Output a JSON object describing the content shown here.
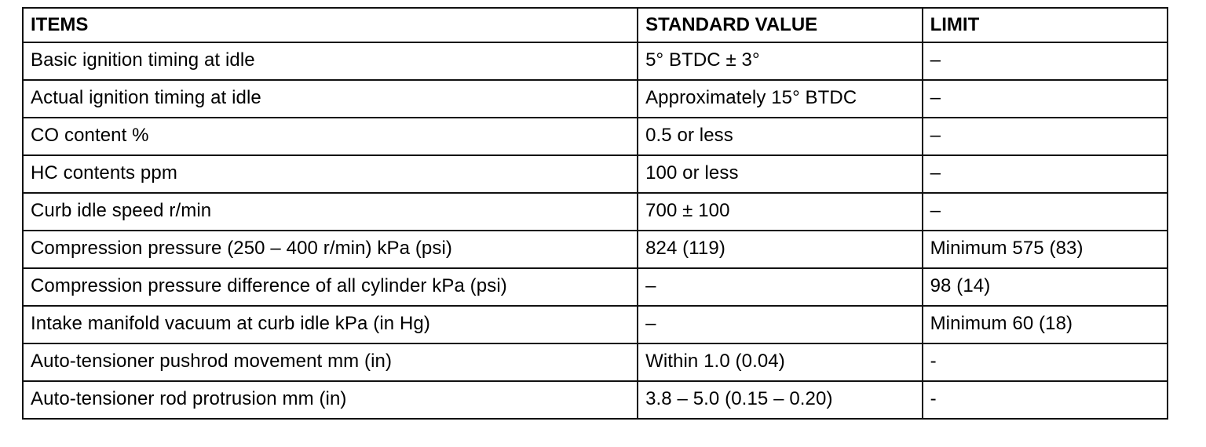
{
  "table": {
    "headers": [
      "ITEMS",
      "STANDARD VALUE",
      "LIMIT"
    ],
    "rows": [
      [
        "Basic ignition timing at idle",
        "5° BTDC ± 3°",
        "–"
      ],
      [
        "Actual ignition timing at idle",
        "Approximately 15° BTDC",
        "–"
      ],
      [
        "CO content %",
        "0.5 or less",
        "–"
      ],
      [
        "HC contents ppm",
        "100 or less",
        "–"
      ],
      [
        "Curb idle speed r/min",
        "700 ± 100",
        "–"
      ],
      [
        "Compression pressure (250 – 400 r/min) kPa (psi)",
        "824 (119)",
        "Minimum 575 (83)"
      ],
      [
        "Compression pressure difference of all cylinder kPa (psi)",
        "–",
        "98 (14)"
      ],
      [
        "Intake manifold vacuum at curb idle kPa (in Hg)",
        "–",
        "Minimum 60 (18)"
      ],
      [
        "Auto-tensioner pushrod movement mm (in)",
        "Within 1.0 (0.04)",
        "-"
      ],
      [
        "Auto-tensioner rod protrusion mm (in)",
        "3.8 – 5.0 (0.15 – 0.20)",
        "-"
      ]
    ]
  }
}
